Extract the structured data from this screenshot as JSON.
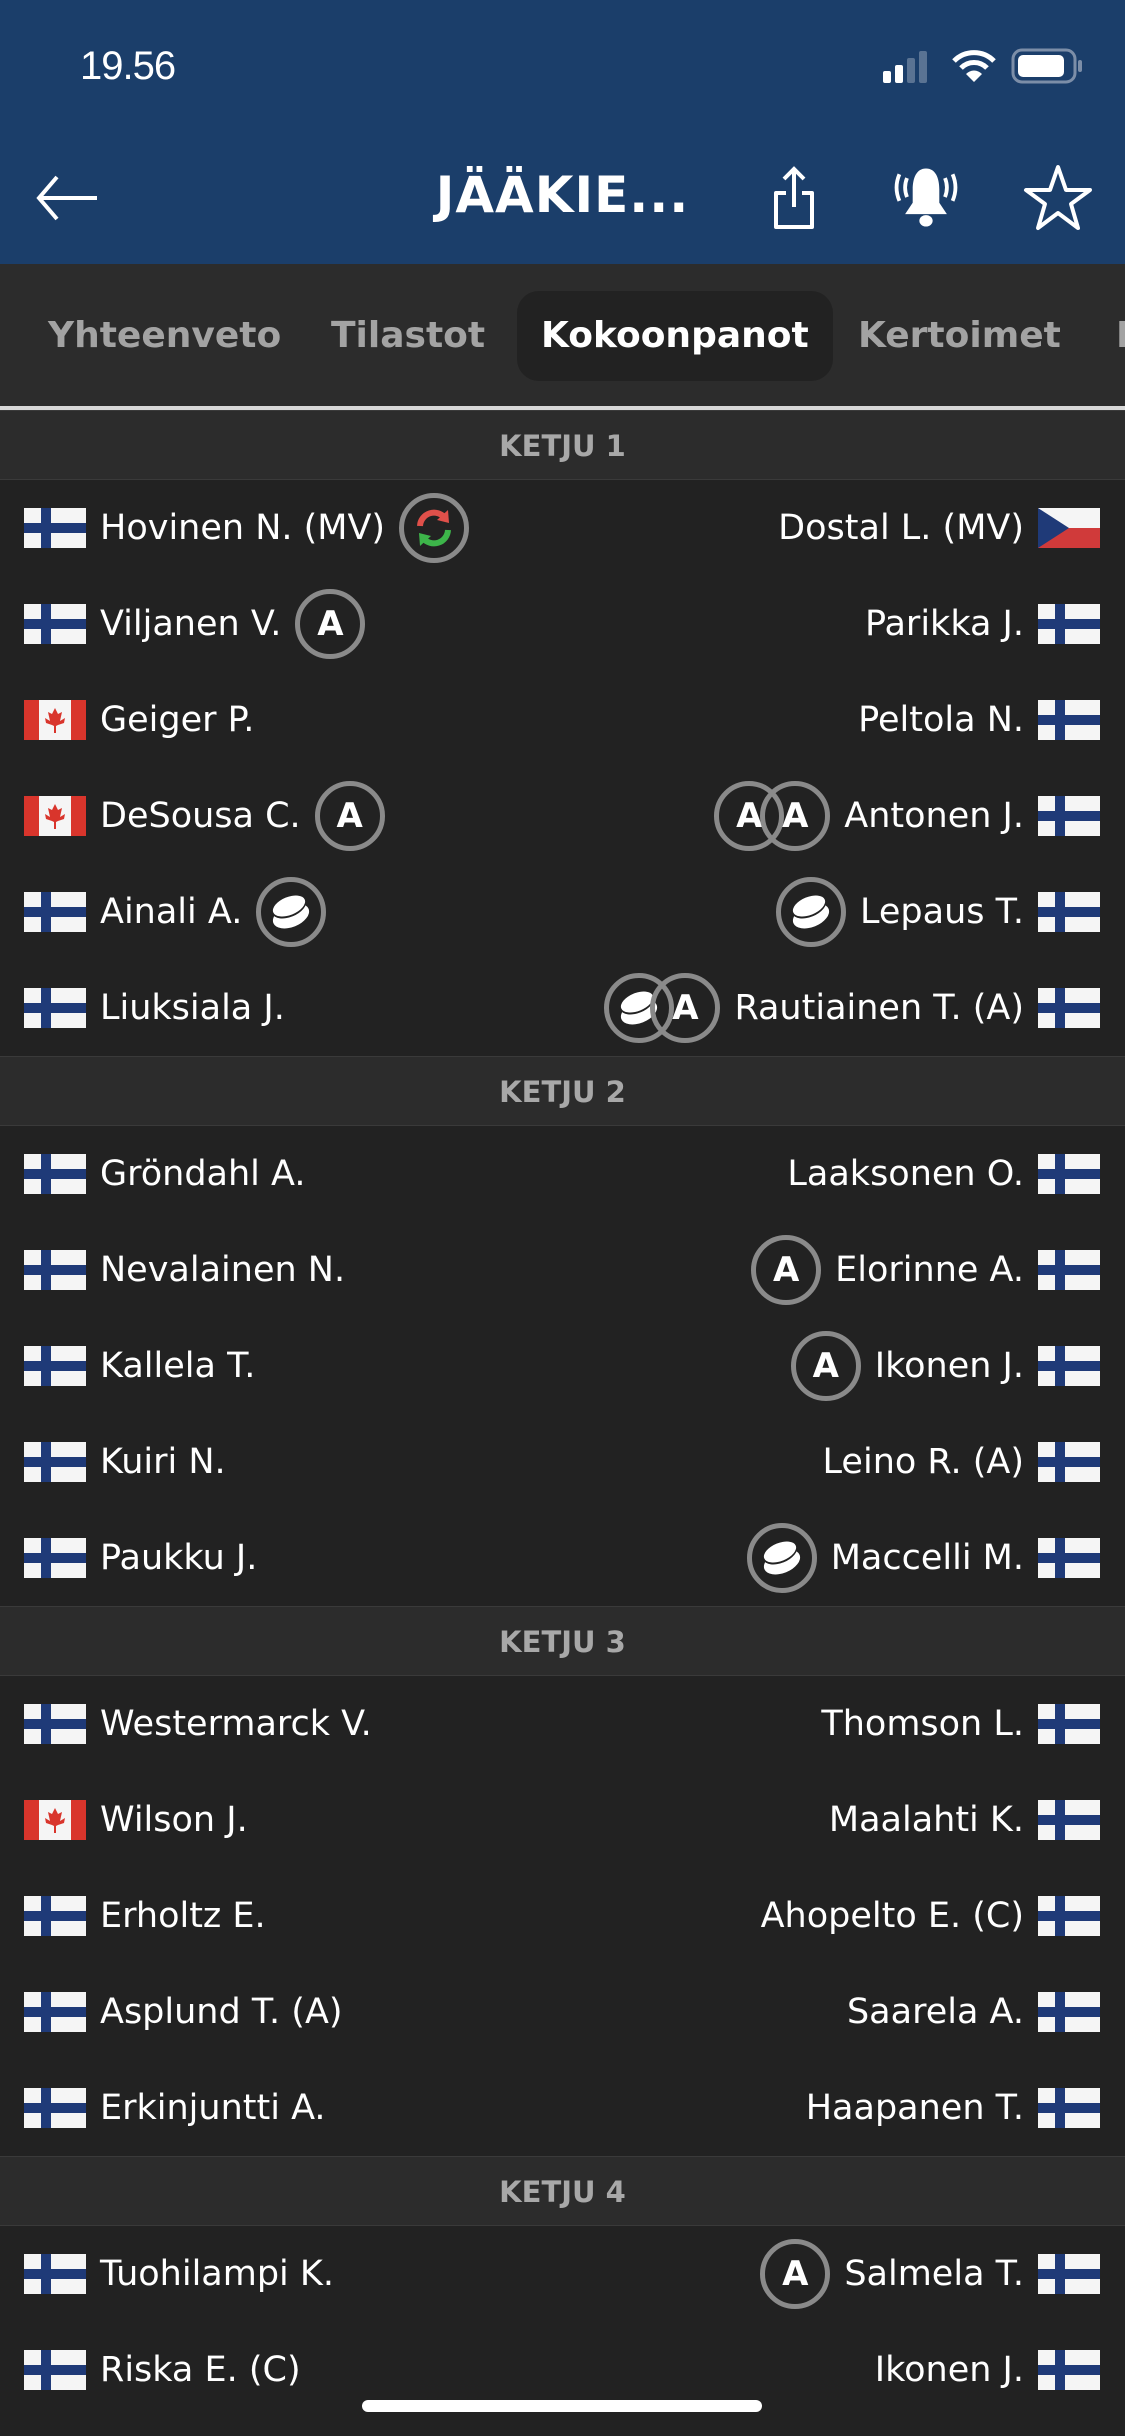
{
  "status_bar": {
    "time": "19.56"
  },
  "header": {
    "title": "JÄÄKIE...",
    "icons": [
      "back-arrow-icon",
      "share-icon",
      "bell-ringing-icon",
      "star-icon"
    ]
  },
  "tabs": [
    {
      "label": "Yhteenveto",
      "active": false
    },
    {
      "label": "Tilastot",
      "active": false
    },
    {
      "label": "Kokoonpanot",
      "active": true
    },
    {
      "label": "Kertoimet",
      "active": false
    },
    {
      "label": "K",
      "active": false
    }
  ],
  "colors": {
    "header_bg": "#1b3e6a",
    "list_bg": "#222222",
    "section_bg": "#2c2c2c"
  },
  "lines": [
    {
      "title": "KETJU 1",
      "rows": [
        {
          "left": {
            "name": "Hovinen N. (MV)",
            "country": "FI",
            "badges": [
              "substitution"
            ]
          },
          "right": {
            "name": "Dostal L. (MV)",
            "country": "CZ",
            "badges": []
          }
        },
        {
          "left": {
            "name": "Viljanen V.",
            "country": "FI",
            "badges": [
              "A"
            ]
          },
          "right": {
            "name": "Parikka J.",
            "country": "FI",
            "badges": []
          }
        },
        {
          "left": {
            "name": "Geiger P.",
            "country": "CA",
            "badges": []
          },
          "right": {
            "name": "Peltola N.",
            "country": "FI",
            "badges": []
          }
        },
        {
          "left": {
            "name": "DeSousa C.",
            "country": "CA",
            "badges": [
              "A"
            ]
          },
          "right": {
            "name": "Antonen J.",
            "country": "FI",
            "badges": [
              "A",
              "A"
            ]
          }
        },
        {
          "left": {
            "name": "Ainali A.",
            "country": "FI",
            "badges": [
              "goal"
            ]
          },
          "right": {
            "name": "Lepaus T.",
            "country": "FI",
            "badges": [
              "goal"
            ]
          }
        },
        {
          "left": {
            "name": "Liuksiala J.",
            "country": "FI",
            "badges": []
          },
          "right": {
            "name": "Rautiainen T. (A)",
            "country": "FI",
            "badges": [
              "goal",
              "A"
            ]
          }
        }
      ]
    },
    {
      "title": "KETJU 2",
      "rows": [
        {
          "left": {
            "name": "Gröndahl A.",
            "country": "FI",
            "badges": []
          },
          "right": {
            "name": "Laaksonen O.",
            "country": "FI",
            "badges": []
          }
        },
        {
          "left": {
            "name": "Nevalainen N.",
            "country": "FI",
            "badges": []
          },
          "right": {
            "name": "Elorinne A.",
            "country": "FI",
            "badges": [
              "A"
            ]
          }
        },
        {
          "left": {
            "name": "Kallela T.",
            "country": "FI",
            "badges": []
          },
          "right": {
            "name": "Ikonen J.",
            "country": "FI",
            "badges": [
              "A"
            ]
          }
        },
        {
          "left": {
            "name": "Kuiri N.",
            "country": "FI",
            "badges": []
          },
          "right": {
            "name": "Leino R. (A)",
            "country": "FI",
            "badges": []
          }
        },
        {
          "left": {
            "name": "Paukku J.",
            "country": "FI",
            "badges": []
          },
          "right": {
            "name": "Maccelli M.",
            "country": "FI",
            "badges": [
              "goal"
            ]
          }
        }
      ]
    },
    {
      "title": "KETJU 3",
      "rows": [
        {
          "left": {
            "name": "Westermarck V.",
            "country": "FI",
            "badges": []
          },
          "right": {
            "name": "Thomson L.",
            "country": "FI",
            "badges": []
          }
        },
        {
          "left": {
            "name": "Wilson J.",
            "country": "CA",
            "badges": []
          },
          "right": {
            "name": "Maalahti K.",
            "country": "FI",
            "badges": []
          }
        },
        {
          "left": {
            "name": "Erholtz E.",
            "country": "FI",
            "badges": []
          },
          "right": {
            "name": "Ahopelto E. (C)",
            "country": "FI",
            "badges": []
          }
        },
        {
          "left": {
            "name": "Asplund T. (A)",
            "country": "FI",
            "badges": []
          },
          "right": {
            "name": "Saarela A.",
            "country": "FI",
            "badges": []
          }
        },
        {
          "left": {
            "name": "Erkinjuntti A.",
            "country": "FI",
            "badges": []
          },
          "right": {
            "name": "Haapanen T.",
            "country": "FI",
            "badges": []
          }
        }
      ]
    },
    {
      "title": "KETJU 4",
      "rows": [
        {
          "left": {
            "name": "Tuohilampi K.",
            "country": "FI",
            "badges": []
          },
          "right": {
            "name": "Salmela T.",
            "country": "FI",
            "badges": [
              "A"
            ]
          }
        },
        {
          "left": {
            "name": "Riska E. (C)",
            "country": "FI",
            "badges": []
          },
          "right": {
            "name": "Ikonen J.",
            "country": "FI",
            "badges": []
          }
        }
      ]
    }
  ],
  "badge_labels": {
    "A": "A"
  }
}
